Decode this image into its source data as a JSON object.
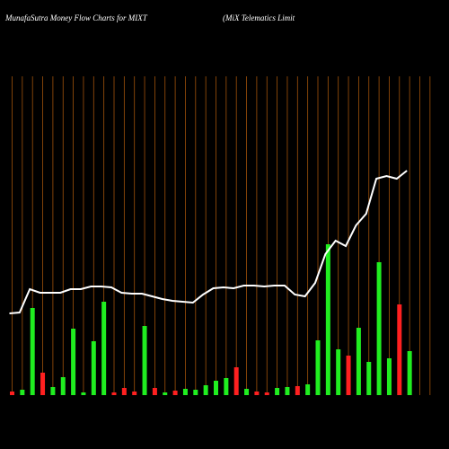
{
  "chart_data": {
    "type": "bar",
    "title": "MunafaSutra  Money Flow  Charts for MIXT",
    "subtitle": "(MiX  Telematics Limit",
    "categories": [
      null,
      null,
      null,
      null,
      null,
      null,
      null,
      null,
      null,
      null,
      null,
      null,
      null,
      null,
      null,
      null,
      null,
      null,
      null,
      null,
      null,
      null,
      null,
      null,
      null,
      null,
      null,
      null,
      null,
      null,
      null,
      null,
      null,
      null,
      null,
      null,
      null,
      null,
      null,
      null
    ],
    "ylim": [
      0,
      355
    ],
    "grid": true,
    "grid_color": "#a0520a",
    "series": [
      {
        "type": "bar",
        "values": [
          4,
          6,
          97,
          25,
          9,
          20,
          74,
          3,
          60,
          104,
          3,
          8,
          4,
          77,
          8,
          3,
          5,
          7,
          6,
          11,
          16,
          19,
          31,
          7,
          4,
          3,
          8,
          9,
          10,
          12,
          61,
          168,
          51,
          44,
          75,
          37,
          148,
          41,
          101,
          49
        ],
        "colors": [
          "#ff2020",
          "#20ee20",
          "#20ee20",
          "#ff2020",
          "#20ee20",
          "#20ee20",
          "#20ee20",
          "#20ee20",
          "#20ee20",
          "#20ee20",
          "#ff2020",
          "#ff2020",
          "#ff2020",
          "#20ee20",
          "#ff2020",
          "#20ee20",
          "#ff2020",
          "#20ee20",
          "#20ee20",
          "#20ee20",
          "#20ee20",
          "#20ee20",
          "#ff2020",
          "#20ee20",
          "#ff2020",
          "#ff2020",
          "#20ee20",
          "#20ee20",
          "#ff2020",
          "#20ee20",
          "#20ee20",
          "#20ee20",
          "#20ee20",
          "#ff2020",
          "#20ee20",
          "#20ee20",
          "#20ee20",
          "#20ee20",
          "#ff2020",
          "#20ee20"
        ]
      },
      {
        "type": "line",
        "color": "#ffffff",
        "values": [
          91,
          92,
          118,
          114,
          114,
          114,
          118,
          118,
          121,
          121,
          120,
          114,
          113,
          113,
          110,
          107,
          105,
          104,
          103,
          112,
          119,
          120,
          119,
          122,
          122,
          121,
          122,
          122,
          112,
          110,
          125,
          157,
          172,
          166,
          189,
          202,
          241,
          244,
          241,
          250
        ]
      }
    ]
  }
}
